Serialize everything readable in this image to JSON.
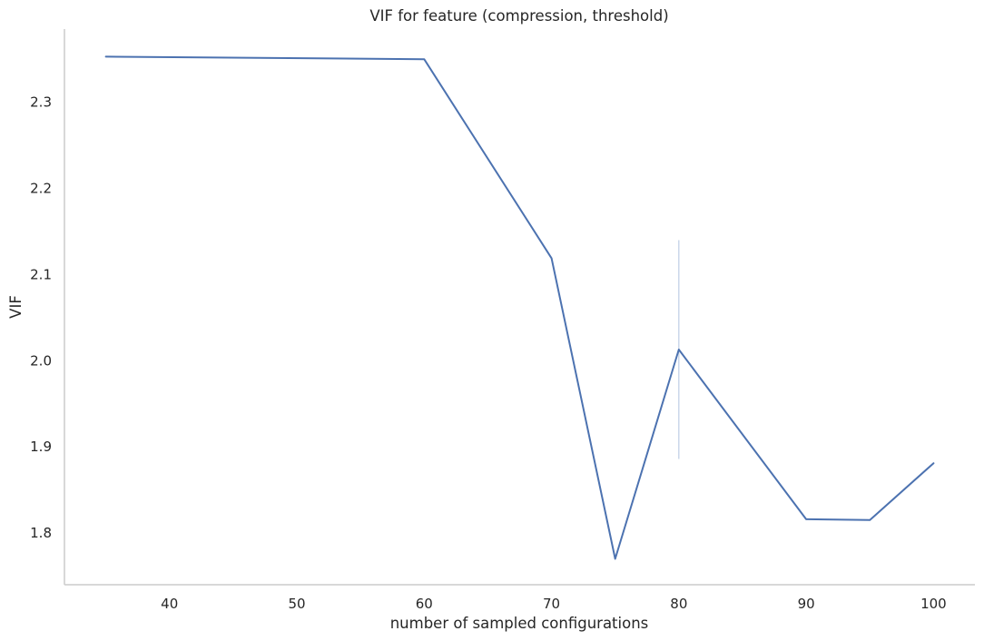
{
  "chart_data": {
    "type": "line",
    "title": "VIF for feature (compression, threshold)",
    "xlabel": "number of sampled configurations",
    "ylabel": "VIF",
    "xlim": [
      31.75,
      103.25
    ],
    "ylim": [
      1.74,
      2.385
    ],
    "x_ticks": [
      40,
      50,
      60,
      70,
      80,
      90,
      100
    ],
    "y_ticks": [
      1.8,
      1.9,
      2.0,
      2.1,
      2.2,
      2.3
    ],
    "x_tick_labels": [
      "40",
      "50",
      "60",
      "70",
      "80",
      "90",
      "100"
    ],
    "y_tick_labels": [
      "1.8",
      "1.9",
      "2.0",
      "2.1",
      "2.2",
      "2.3"
    ],
    "grid": false,
    "series": [
      {
        "color": "#4c72b0",
        "x": [
          35,
          60,
          70,
          75,
          80,
          90,
          95,
          100
        ],
        "y": [
          2.353,
          2.35,
          2.119,
          1.77,
          2.013,
          1.816,
          1.815,
          1.881
        ]
      }
    ],
    "error_bars": [
      {
        "x": 80,
        "low": 1.886,
        "high": 2.14,
        "color": "#b0c4de"
      }
    ],
    "spine_color": "#cccccc"
  }
}
